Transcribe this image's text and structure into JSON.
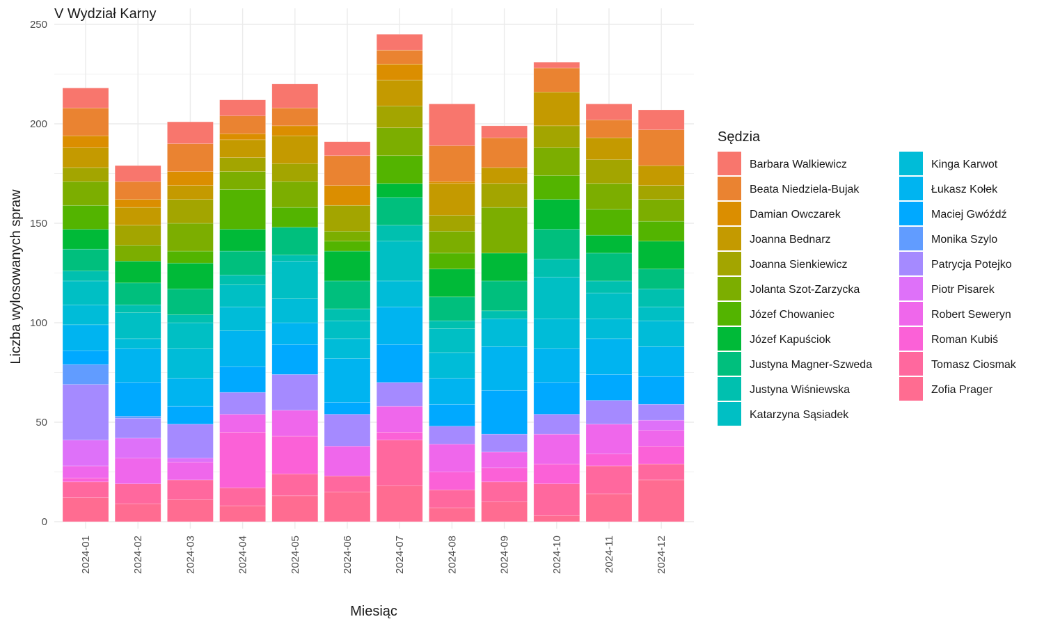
{
  "chart_data": {
    "type": "bar",
    "stacked": true,
    "title": "V Wydział Karny",
    "xlabel": "Miesiąc",
    "ylabel": "Liczba wylosowanych spraw",
    "ylim": [
      0,
      250
    ],
    "yticks": [
      0,
      50,
      100,
      150,
      200,
      250
    ],
    "grid": true,
    "legend_title": "Sędzia",
    "legend_position": "right",
    "categories": [
      "2024-01",
      "2024-02",
      "2024-03",
      "2024-04",
      "2024-05",
      "2024-06",
      "2024-07",
      "2024-08",
      "2024-09",
      "2024-10",
      "2024-11",
      "2024-12"
    ],
    "series": [
      {
        "name": "Zofia Prager",
        "color": "#FF6C91",
        "values": [
          12,
          9,
          11,
          8,
          13,
          15,
          18,
          7,
          10,
          3,
          14,
          21
        ]
      },
      {
        "name": "Tomasz Ciosmak",
        "color": "#FF689E",
        "values": [
          8,
          10,
          10,
          9,
          11,
          8,
          23,
          9,
          10,
          16,
          14,
          8
        ]
      },
      {
        "name": "Roman Kubiś",
        "color": "#FB61D7",
        "values": [
          2,
          0,
          0,
          28,
          19,
          0,
          4,
          9,
          7,
          10,
          6,
          9
        ]
      },
      {
        "name": "Robert Seweryn",
        "color": "#EF67EB",
        "values": [
          6,
          13,
          9,
          9,
          13,
          15,
          13,
          14,
          8,
          15,
          15,
          8
        ]
      },
      {
        "name": "Piotr Pisarek",
        "color": "#DE71F9",
        "values": [
          13,
          10,
          2,
          0,
          0,
          0,
          0,
          0,
          0,
          0,
          0,
          5
        ]
      },
      {
        "name": "Patrycja Potejko",
        "color": "#A58AFF",
        "values": [
          28,
          10,
          17,
          11,
          18,
          16,
          12,
          9,
          9,
          10,
          12,
          8
        ]
      },
      {
        "name": "Monika Szylo",
        "color": "#619CFF",
        "values": [
          10,
          1,
          0,
          0,
          0,
          0,
          0,
          0,
          0,
          0,
          0,
          0
        ]
      },
      {
        "name": "Maciej Gwóźdź",
        "color": "#00A9FF",
        "values": [
          7,
          17,
          9,
          13,
          15,
          6,
          19,
          11,
          22,
          16,
          13,
          14
        ]
      },
      {
        "name": "Łukasz Kołek",
        "color": "#00B4F0",
        "values": [
          13,
          17,
          14,
          18,
          11,
          22,
          19,
          13,
          22,
          17,
          18,
          15
        ]
      },
      {
        "name": "Kinga Karwot",
        "color": "#00BCD8",
        "values": [
          10,
          5,
          15,
          12,
          12,
          10,
          13,
          13,
          14,
          15,
          10,
          13
        ]
      },
      {
        "name": "Katarzyna Sąsiadek",
        "color": "#00BFC4",
        "values": [
          12,
          13,
          13,
          11,
          19,
          9,
          20,
          12,
          0,
          21,
          13,
          7
        ]
      },
      {
        "name": "Justyna Wiśniewska",
        "color": "#00C0AF",
        "values": [
          5,
          4,
          4,
          5,
          3,
          6,
          8,
          4,
          4,
          9,
          6,
          9
        ]
      },
      {
        "name": "Justyna Magner-Szweda",
        "color": "#00BF7D",
        "values": [
          11,
          11,
          13,
          12,
          14,
          14,
          14,
          12,
          15,
          15,
          14,
          10
        ]
      },
      {
        "name": "Józef Kapuściok",
        "color": "#00BA38",
        "values": [
          10,
          11,
          13,
          11,
          0,
          15,
          7,
          14,
          14,
          15,
          9,
          14
        ]
      },
      {
        "name": "Józef Chowaniec",
        "color": "#53B400",
        "values": [
          12,
          0,
          6,
          20,
          10,
          5,
          14,
          8,
          0,
          12,
          13,
          10
        ]
      },
      {
        "name": "Jolanta Szot-Zarzycka",
        "color": "#7CAE00",
        "values": [
          12,
          8,
          14,
          9,
          13,
          5,
          14,
          11,
          23,
          14,
          13,
          11
        ]
      },
      {
        "name": "Joanna Sienkiewicz",
        "color": "#A3A500",
        "values": [
          7,
          10,
          12,
          7,
          9,
          13,
          11,
          8,
          12,
          11,
          12,
          7
        ]
      },
      {
        "name": "Joanna Bednarz",
        "color": "#C49A00",
        "values": [
          10,
          9,
          7,
          9,
          14,
          0,
          13,
          16,
          8,
          17,
          11,
          10
        ]
      },
      {
        "name": "Damian Owczarek",
        "color": "#DB8E00",
        "values": [
          6,
          4,
          7,
          3,
          5,
          10,
          8,
          1,
          0,
          0,
          0,
          0
        ]
      },
      {
        "name": "Beata Niedziela-Bujak",
        "color": "#EA8331",
        "values": [
          14,
          9,
          14,
          9,
          9,
          15,
          7,
          18,
          15,
          12,
          9,
          18
        ]
      },
      {
        "name": "Barbara Walkiewicz",
        "color": "#F8766D",
        "values": [
          10,
          8,
          11,
          8,
          12,
          7,
          8,
          21,
          6,
          3,
          8,
          10
        ]
      }
    ],
    "legend_order": [
      "Barbara Walkiewicz",
      "Beata Niedziela-Bujak",
      "Damian Owczarek",
      "Joanna Bednarz",
      "Joanna Sienkiewicz",
      "Jolanta Szot-Zarzycka",
      "Józef Chowaniec",
      "Józef Kapuściok",
      "Justyna Magner-Szweda",
      "Justyna Wiśniewska",
      "Katarzyna Sąsiadek",
      "Kinga Karwot",
      "Łukasz Kołek",
      "Maciej Gwóźdź",
      "Monika Szylo",
      "Patrycja Potejko",
      "Piotr Pisarek",
      "Robert Seweryn",
      "Roman Kubiś",
      "Tomasz Ciosmak",
      "Zofia Prager"
    ]
  }
}
